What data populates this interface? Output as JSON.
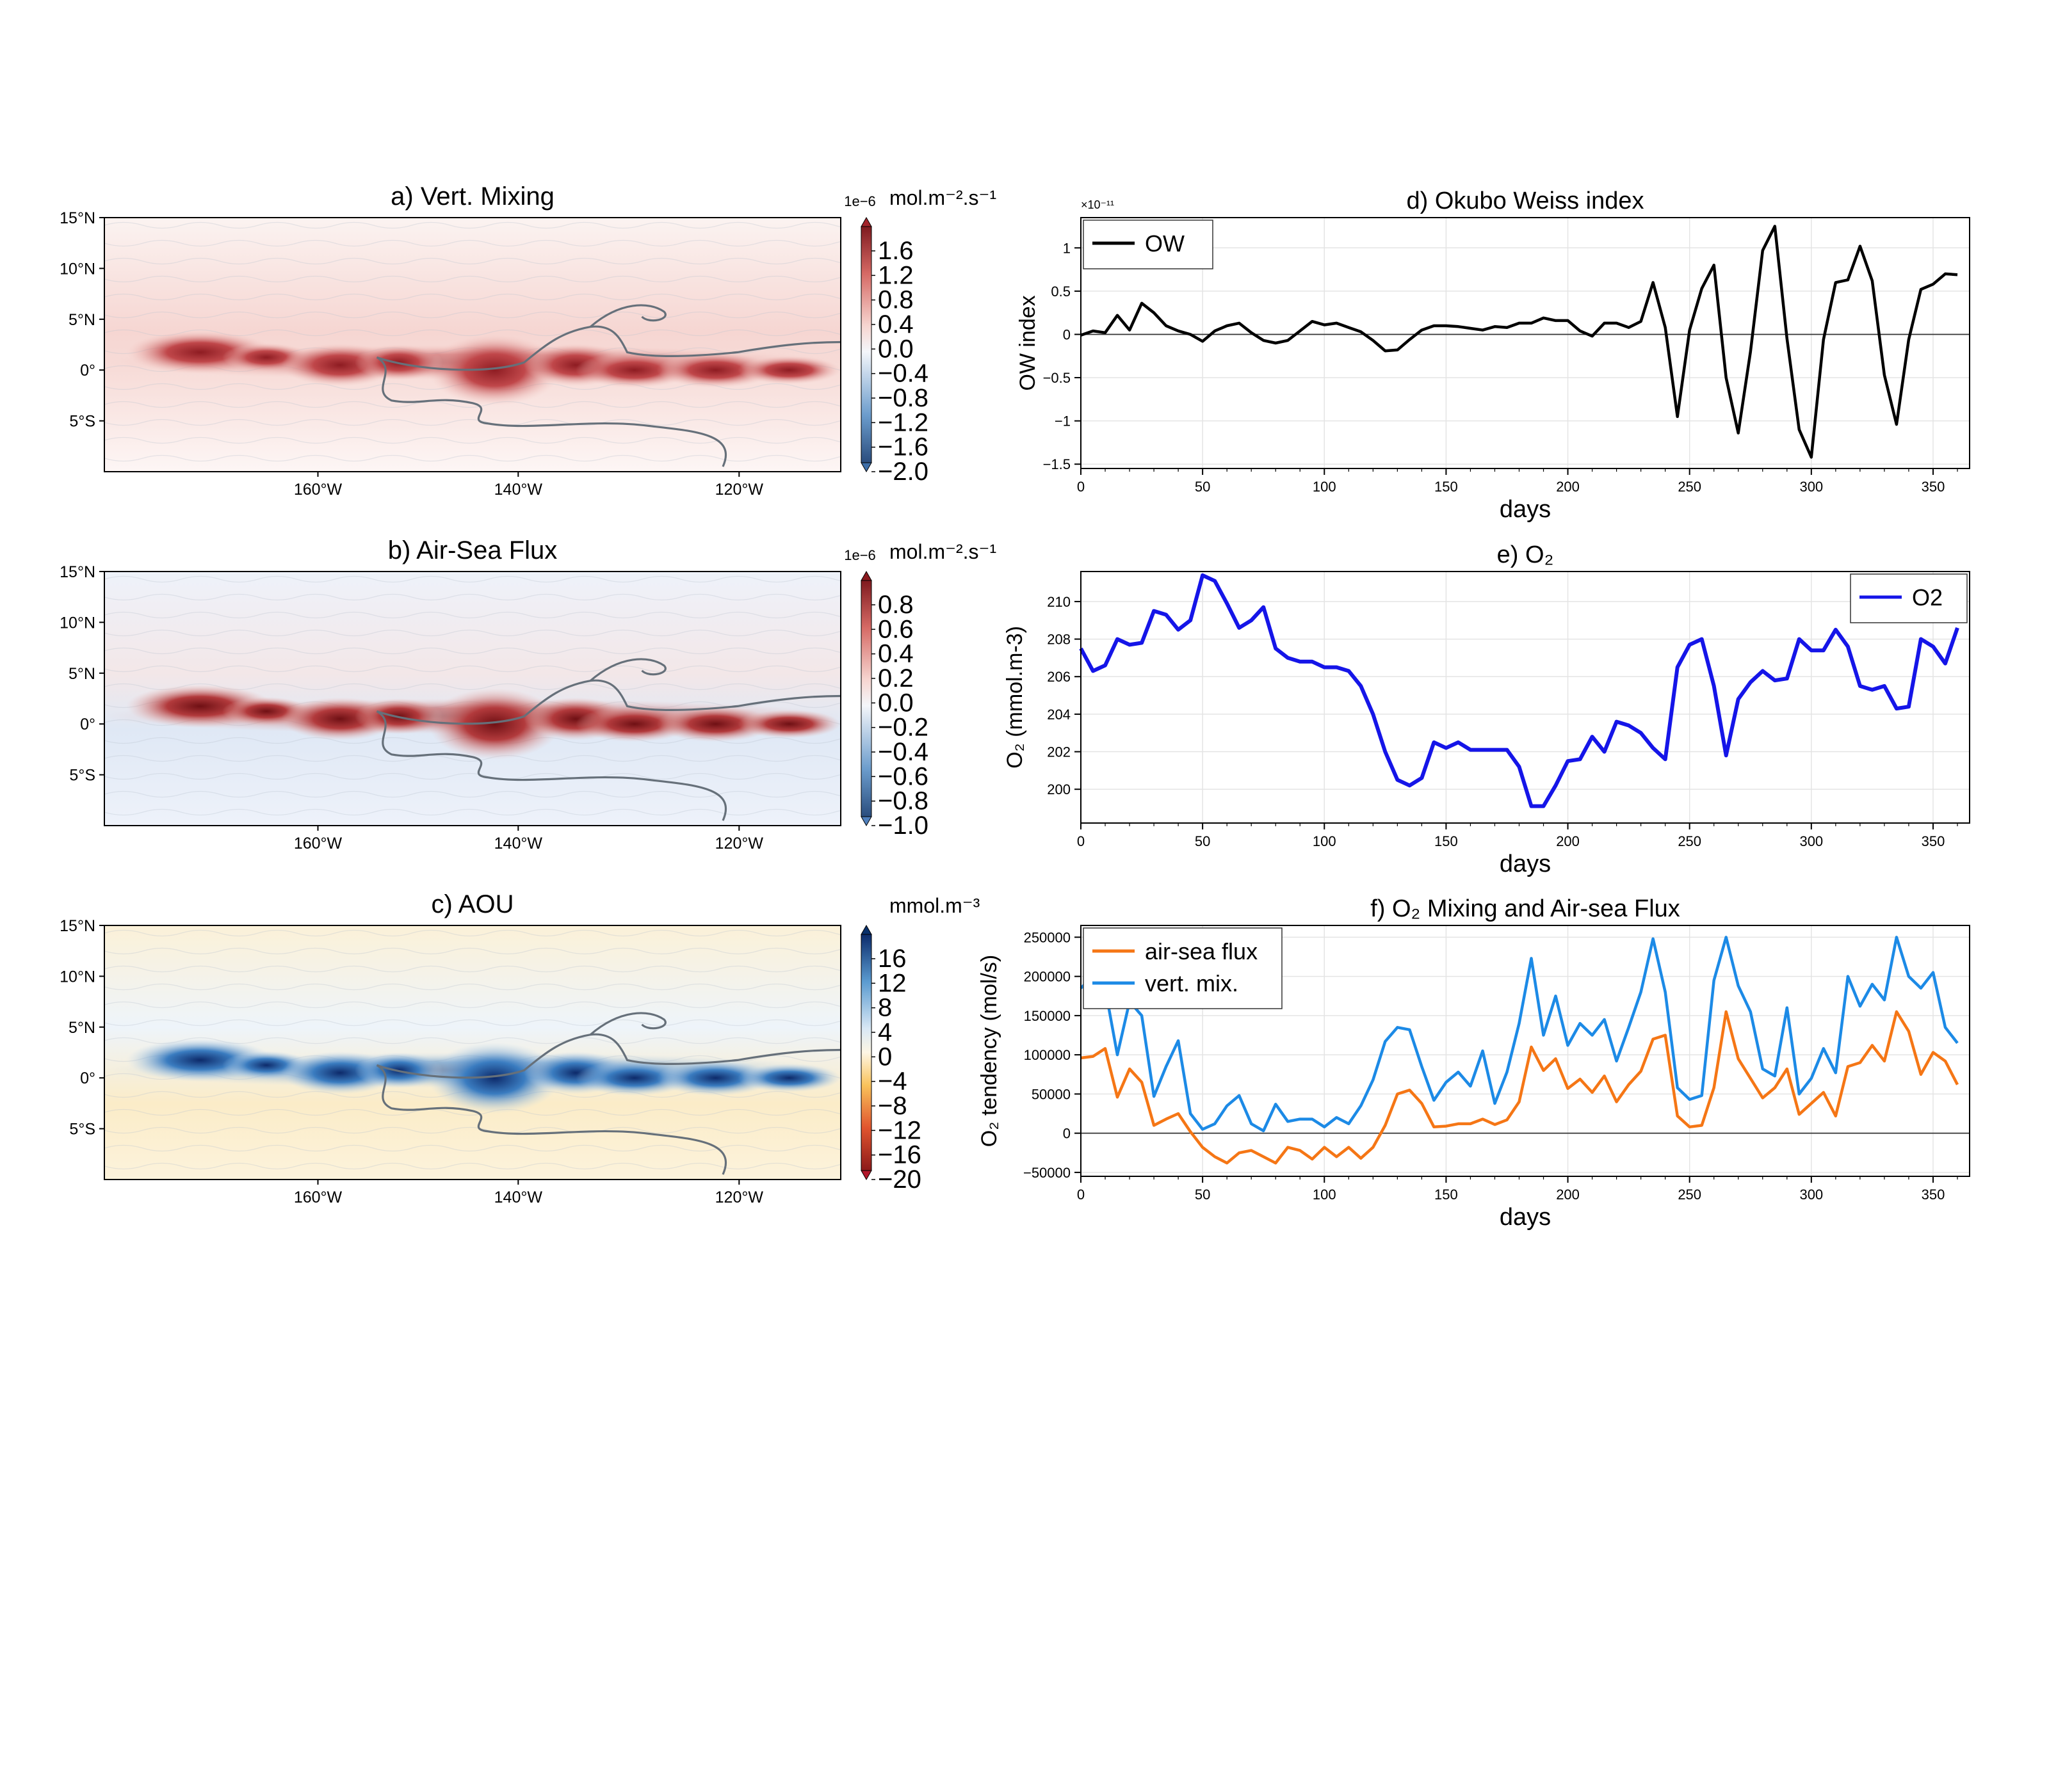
{
  "chart_data": [
    {
      "id": "a",
      "type": "heatmap",
      "title": "a) Vert. Mixing",
      "scale_label": "1e−6",
      "units": "mol.m⁻².s⁻¹",
      "lat_ticks": [
        "15°N",
        "10°N",
        "5°N",
        "0°",
        "5°S"
      ],
      "lon_ticks": [
        "160°W",
        "140°W",
        "120°W"
      ],
      "colorbar_ticks": [
        "1.6",
        "1.2",
        "0.8",
        "0.4",
        "0.0",
        "−0.4",
        "−0.8",
        "−1.2",
        "−1.6",
        "−2.0"
      ],
      "colormap": "diverging blue-white-red",
      "colors": {
        "pos": "#a3232a",
        "neg": "#3d6ea8",
        "mid": "#ffffff"
      }
    },
    {
      "id": "b",
      "type": "heatmap",
      "title": "b) Air-Sea Flux",
      "scale_label": "1e−6",
      "units": "mol.m⁻².s⁻¹",
      "lat_ticks": [
        "15°N",
        "10°N",
        "5°N",
        "0°",
        "5°S"
      ],
      "lon_ticks": [
        "160°W",
        "140°W",
        "120°W"
      ],
      "colorbar_ticks": [
        "0.8",
        "0.6",
        "0.4",
        "0.2",
        "0.0",
        "−0.2",
        "−0.4",
        "−0.6",
        "−0.8",
        "−1.0"
      ],
      "colormap": "diverging blue-white-red",
      "colors": {
        "pos": "#8a1a1f",
        "neg": "#4f80bd",
        "mid": "#ffffff"
      }
    },
    {
      "id": "c",
      "type": "heatmap",
      "title": "c) AOU",
      "units": "mmol.m⁻³",
      "lat_ticks": [
        "15°N",
        "10°N",
        "5°N",
        "0°",
        "5°S"
      ],
      "lon_ticks": [
        "160°W",
        "140°W",
        "120°W"
      ],
      "colorbar_ticks": [
        "16",
        "12",
        "8",
        "4",
        "0",
        "−4",
        "−8",
        "−12",
        "−16",
        "−20"
      ],
      "colormap": "diverging red-yellow-white-blue",
      "colors": {
        "pos": "#08306b",
        "neg": "#b2182b",
        "mid": "#ffffff"
      }
    },
    {
      "id": "d",
      "type": "line",
      "title": "d) Okubo Weiss index",
      "xlabel": "days",
      "ylabel": "OW index",
      "exponent_label": "×10⁻¹¹",
      "xlim": [
        0,
        365
      ],
      "ylim": [
        -1.55,
        1.35
      ],
      "yscale_note": "values in units of 1e-11",
      "xticks": [
        0,
        50,
        100,
        150,
        200,
        250,
        300,
        350
      ],
      "yticks": [
        -1.5,
        -1,
        -0.5,
        0,
        0.5,
        1
      ],
      "ytick_labels": [
        "−1.5",
        "−1",
        "−0.5",
        "0",
        "0.5",
        "1"
      ],
      "zero_line": true,
      "legend": "top-left",
      "grid": true,
      "series": [
        {
          "name": "OW",
          "color": "#000000",
          "x": [
            0,
            5,
            10,
            15,
            20,
            25,
            30,
            35,
            40,
            45,
            50,
            55,
            60,
            65,
            70,
            75,
            80,
            85,
            90,
            95,
            100,
            105,
            110,
            115,
            120,
            125,
            130,
            135,
            140,
            145,
            150,
            155,
            160,
            165,
            170,
            175,
            180,
            185,
            190,
            195,
            200,
            205,
            210,
            215,
            220,
            225,
            230,
            235,
            240,
            245,
            250,
            255,
            260,
            265,
            270,
            275,
            280,
            285,
            290,
            295,
            300,
            305,
            310,
            315,
            320,
            325,
            330,
            335,
            340,
            345,
            350,
            355,
            360
          ],
          "y": [
            -0.01,
            0.04,
            0.02,
            0.22,
            0.05,
            0.36,
            0.25,
            0.1,
            0.04,
            0.0,
            -0.08,
            0.04,
            0.1,
            0.13,
            0.02,
            -0.07,
            -0.1,
            -0.07,
            0.04,
            0.15,
            0.11,
            0.13,
            0.08,
            0.03,
            -0.07,
            -0.19,
            -0.18,
            -0.06,
            0.05,
            0.1,
            0.1,
            0.09,
            0.07,
            0.05,
            0.09,
            0.08,
            0.13,
            0.13,
            0.19,
            0.16,
            0.16,
            0.04,
            -0.02,
            0.13,
            0.13,
            0.08,
            0.15,
            0.6,
            0.08,
            -0.95,
            0.05,
            0.53,
            0.8,
            -0.5,
            -1.14,
            -0.2,
            0.97,
            1.25,
            -0.05,
            -1.1,
            -1.42,
            -0.06,
            0.6,
            0.63,
            1.02,
            0.62,
            -0.47,
            -1.04,
            -0.06,
            0.52,
            0.58,
            0.7,
            0.69
          ]
        }
      ]
    },
    {
      "id": "e",
      "type": "line",
      "title": "e) O₂",
      "xlabel": "days",
      "ylabel": "O₂ (mmol.m-3)",
      "xlim": [
        0,
        365
      ],
      "ylim": [
        198.2,
        211.6
      ],
      "xticks": [
        0,
        50,
        100,
        150,
        200,
        250,
        300,
        350
      ],
      "yticks": [
        200,
        202,
        204,
        206,
        208,
        210
      ],
      "legend": "top-right",
      "grid": true,
      "series": [
        {
          "name": "O2",
          "color": "#1515e8",
          "x": [
            0,
            5,
            10,
            15,
            20,
            25,
            30,
            35,
            40,
            45,
            50,
            55,
            60,
            65,
            70,
            75,
            80,
            85,
            90,
            95,
            100,
            105,
            110,
            115,
            120,
            125,
            130,
            135,
            140,
            145,
            150,
            155,
            160,
            165,
            170,
            175,
            180,
            185,
            190,
            195,
            200,
            205,
            210,
            215,
            220,
            225,
            230,
            235,
            240,
            245,
            250,
            255,
            260,
            265,
            270,
            275,
            280,
            285,
            290,
            295,
            300,
            305,
            310,
            315,
            320,
            325,
            330,
            335,
            340,
            345,
            350,
            355,
            360
          ],
          "y": [
            207.5,
            206.3,
            206.6,
            208.0,
            207.7,
            207.8,
            209.5,
            209.3,
            208.5,
            209.0,
            211.4,
            211.1,
            209.9,
            208.6,
            209.0,
            209.7,
            207.5,
            207.0,
            206.8,
            206.8,
            206.5,
            206.5,
            206.3,
            205.5,
            204.0,
            202.0,
            200.5,
            200.2,
            200.6,
            202.5,
            202.2,
            202.5,
            202.1,
            202.1,
            202.1,
            202.1,
            201.2,
            199.1,
            199.1,
            200.2,
            201.5,
            201.6,
            202.8,
            202.0,
            203.6,
            203.4,
            203.0,
            202.2,
            201.6,
            206.5,
            207.7,
            208.0,
            205.5,
            201.8,
            204.8,
            205.7,
            206.3,
            205.8,
            205.9,
            208.0,
            207.4,
            207.4,
            208.5,
            207.6,
            205.5,
            205.3,
            205.5,
            204.3,
            204.4,
            208.0,
            207.6,
            206.7,
            208.6
          ]
        }
      ]
    },
    {
      "id": "f",
      "type": "line",
      "title": "f) O₂ Mixing and Air-sea Flux",
      "xlabel": "days",
      "ylabel": "O₂ tendency (mol/s)",
      "xlim": [
        0,
        365
      ],
      "ylim": [
        -55000,
        265000
      ],
      "xticks": [
        0,
        50,
        100,
        150,
        200,
        250,
        300,
        350
      ],
      "yticks": [
        -50000,
        0,
        50000,
        100000,
        150000,
        200000,
        250000
      ],
      "ytick_labels": [
        "−50000",
        "0",
        "50000",
        "100000",
        "150000",
        "200000",
        "250000"
      ],
      "zero_line": true,
      "legend": "top-left",
      "grid": true,
      "series": [
        {
          "name": "air-sea flux",
          "color": "#f57615",
          "x": [
            0,
            5,
            10,
            15,
            20,
            25,
            30,
            35,
            40,
            45,
            50,
            55,
            60,
            65,
            70,
            75,
            80,
            85,
            90,
            95,
            100,
            105,
            110,
            115,
            120,
            125,
            130,
            135,
            140,
            145,
            150,
            155,
            160,
            165,
            170,
            175,
            180,
            185,
            190,
            195,
            200,
            205,
            210,
            215,
            220,
            225,
            230,
            235,
            240,
            245,
            250,
            255,
            260,
            265,
            270,
            275,
            280,
            285,
            290,
            295,
            300,
            305,
            310,
            315,
            320,
            325,
            330,
            335,
            340,
            345,
            350,
            355,
            360
          ],
          "y": [
            96000,
            98000,
            108000,
            46000,
            82000,
            65000,
            10000,
            18000,
            25000,
            2000,
            -18000,
            -30000,
            -38000,
            -25000,
            -22000,
            -30000,
            -38000,
            -18000,
            -22000,
            -33000,
            -18000,
            -30000,
            -18000,
            -32000,
            -18000,
            10000,
            50000,
            55000,
            38000,
            8000,
            9000,
            12000,
            12000,
            18000,
            11000,
            17000,
            40000,
            110000,
            80000,
            95000,
            57000,
            69000,
            52000,
            73000,
            40000,
            62000,
            79000,
            120000,
            125000,
            22000,
            8000,
            10000,
            58000,
            155000,
            95000,
            70000,
            45000,
            58000,
            82000,
            24000,
            38000,
            52000,
            22000,
            85000,
            90000,
            112000,
            92000,
            155000,
            130000,
            75000,
            103000,
            92000,
            62000
          ]
        },
        {
          "name": "vert. mix.",
          "color": "#1c8ae6",
          "x": [
            0,
            5,
            10,
            15,
            20,
            25,
            30,
            35,
            40,
            45,
            50,
            55,
            60,
            65,
            70,
            75,
            80,
            85,
            90,
            95,
            100,
            105,
            110,
            115,
            120,
            125,
            130,
            135,
            140,
            145,
            150,
            155,
            160,
            165,
            170,
            175,
            180,
            185,
            190,
            195,
            200,
            205,
            210,
            215,
            220,
            225,
            230,
            235,
            240,
            245,
            250,
            255,
            260,
            265,
            270,
            275,
            280,
            285,
            290,
            295,
            300,
            305,
            310,
            315,
            320,
            325,
            330,
            335,
            340,
            345,
            350,
            355,
            360
          ],
          "y": [
            185000,
            200000,
            185000,
            100000,
            168000,
            150000,
            47000,
            85000,
            118000,
            25000,
            5000,
            12000,
            35000,
            48000,
            12000,
            3000,
            37000,
            15000,
            18000,
            18000,
            8000,
            20000,
            12000,
            35000,
            68000,
            117000,
            135000,
            132000,
            85000,
            42000,
            65000,
            78000,
            60000,
            105000,
            38000,
            78000,
            140000,
            223000,
            125000,
            175000,
            112000,
            140000,
            125000,
            145000,
            92000,
            135000,
            180000,
            248000,
            180000,
            58000,
            43000,
            48000,
            195000,
            250000,
            188000,
            155000,
            82000,
            73000,
            160000,
            50000,
            70000,
            108000,
            77000,
            200000,
            162000,
            190000,
            170000,
            250000,
            200000,
            185000,
            205000,
            135000,
            115000
          ]
        }
      ]
    }
  ]
}
